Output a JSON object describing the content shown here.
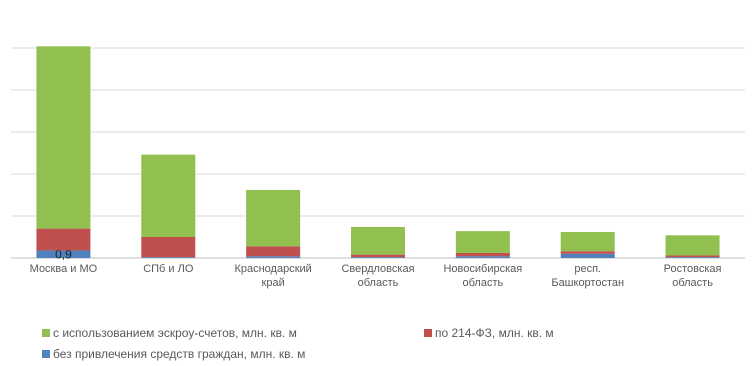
{
  "chart_data": {
    "type": "stacked_bar",
    "categories": [
      "Москва и МО",
      "СПб и ЛО",
      "Краснодарский\nкрай",
      "Свердловская\nобласть",
      "Новосибирская\nобласть",
      "респ.\nБашкортостан",
      "Ростовская\nобласть"
    ],
    "series": [
      {
        "name": "без привлечения средств граждан, млн. кв. м",
        "color": "#4f81bd",
        "values": [
          0.9,
          0.1,
          0.2,
          0.1,
          0.2,
          0.5,
          0.1
        ],
        "value_labels": [
          "0,9",
          null,
          null,
          null,
          null,
          null,
          null
        ]
      },
      {
        "name": "по 214-ФЗ, млн. кв. м",
        "color": "#c0504d",
        "values": [
          2.6,
          2.4,
          1.2,
          0.3,
          0.4,
          0.3,
          0.2
        ]
      },
      {
        "name": "с использованием эскроу-счетов, млн. кв. м",
        "color": "#92c050",
        "values": [
          21.7,
          9.8,
          6.7,
          3.3,
          2.6,
          2.3,
          2.4
        ]
      }
    ],
    "ylim": [
      0,
      25
    ],
    "yticks": [
      0,
      5,
      10,
      15,
      20,
      25
    ],
    "grid": true
  }
}
